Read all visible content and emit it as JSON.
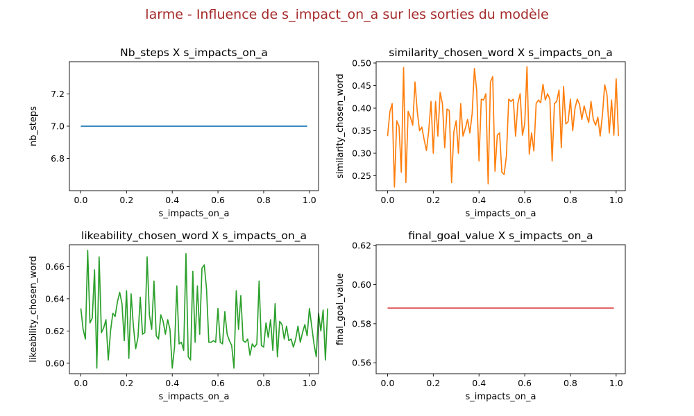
{
  "figure": {
    "suptitle": "larme - Influence de s_impact_on_a sur les sorties du modèle",
    "suptitle_color": "#a52a2a"
  },
  "chart_data": [
    {
      "type": "line",
      "title": "Nb_steps X s_impacts_on_a",
      "xlabel": "s_impacts_on_a",
      "ylabel": "nb_steps",
      "xlim": [
        -0.05,
        1.04
      ],
      "ylim": [
        6.6,
        7.4
      ],
      "xticks": [
        0.0,
        0.2,
        0.4,
        0.6,
        0.8,
        1.0
      ],
      "yticks": [
        6.8,
        7.0,
        7.2
      ],
      "xtick_labels": [
        "0.0",
        "0.2",
        "0.4",
        "0.6",
        "0.8",
        "1.0"
      ],
      "ytick_labels": [
        "6.8",
        "7.0",
        "7.2"
      ],
      "color": "#1f77b4",
      "series": [
        {
          "x": [
            0.0,
            0.99
          ],
          "values": [
            7.0,
            7.0
          ]
        }
      ]
    },
    {
      "type": "line",
      "title": "similarity_chosen_word X s_impacts_on_a",
      "xlabel": "s_impacts_on_a",
      "ylabel": "similarity_chosen_word",
      "xlim": [
        -0.05,
        1.04
      ],
      "ylim": [
        0.217,
        0.503
      ],
      "xticks": [
        0.0,
        0.2,
        0.4,
        0.6,
        0.8,
        1.0
      ],
      "yticks": [
        0.25,
        0.3,
        0.35,
        0.4,
        0.45,
        0.5
      ],
      "xtick_labels": [
        "0.0",
        "0.2",
        "0.4",
        "0.6",
        "0.8",
        "1.0"
      ],
      "ytick_labels": [
        "0.25",
        "0.30",
        "0.35",
        "0.40",
        "0.45",
        "0.50"
      ],
      "color": "#ff7f0e",
      "series": [
        {
          "x_start": 0.0,
          "x_step": 0.01,
          "values": [
            0.338,
            0.392,
            0.41,
            0.225,
            0.372,
            0.36,
            0.258,
            0.49,
            0.235,
            0.393,
            0.38,
            0.362,
            0.458,
            0.392,
            0.35,
            0.358,
            0.33,
            0.306,
            0.35,
            0.415,
            0.3,
            0.415,
            0.338,
            0.435,
            0.41,
            0.312,
            0.398,
            0.395,
            0.235,
            0.348,
            0.372,
            0.3,
            0.41,
            0.338,
            0.355,
            0.375,
            0.345,
            0.388,
            0.488,
            0.438,
            0.283,
            0.42,
            0.418,
            0.432,
            0.232,
            0.458,
            0.47,
            0.26,
            0.34,
            0.345,
            0.258,
            0.253,
            0.295,
            0.42,
            0.415,
            0.42,
            0.338,
            0.41,
            0.432,
            0.34,
            0.365,
            0.492,
            0.298,
            0.345,
            0.305,
            0.41,
            0.418,
            0.412,
            0.453,
            0.418,
            0.432,
            0.42,
            0.283,
            0.41,
            0.415,
            0.44,
            0.312,
            0.448,
            0.365,
            0.37,
            0.42,
            0.35,
            0.4,
            0.42,
            0.408,
            0.375,
            0.405,
            0.385,
            0.368,
            0.415,
            0.375,
            0.362,
            0.38,
            0.338,
            0.385,
            0.452,
            0.43,
            0.345,
            0.418,
            0.34,
            0.465,
            0.338
          ]
        }
      ]
    },
    {
      "type": "line",
      "title": "likeability_chosen_word X s_impacts_on_a",
      "xlabel": "s_impacts_on_a",
      "ylabel": "likeability_chosen_word",
      "xlim": [
        -0.05,
        1.04
      ],
      "ylim": [
        0.5935,
        0.6735
      ],
      "xticks": [
        0.0,
        0.2,
        0.4,
        0.6,
        0.8,
        1.0
      ],
      "yticks": [
        0.6,
        0.62,
        0.64,
        0.66
      ],
      "xtick_labels": [
        "0.0",
        "0.2",
        "0.4",
        "0.6",
        "0.8",
        "1.0"
      ],
      "ytick_labels": [
        "0.60",
        "0.62",
        "0.64",
        "0.66"
      ],
      "color": "#2ca02c",
      "series": [
        {
          "x_start": 0.0,
          "x_step": 0.01,
          "values": [
            0.634,
            0.621,
            0.615,
            0.67,
            0.625,
            0.628,
            0.658,
            0.597,
            0.666,
            0.619,
            0.622,
            0.627,
            0.602,
            0.62,
            0.631,
            0.629,
            0.638,
            0.644,
            0.637,
            0.614,
            0.645,
            0.603,
            0.643,
            0.623,
            0.609,
            0.616,
            0.641,
            0.618,
            0.619,
            0.666,
            0.63,
            0.621,
            0.651,
            0.617,
            0.615,
            0.63,
            0.626,
            0.618,
            0.627,
            0.621,
            0.597,
            0.61,
            0.648,
            0.612,
            0.613,
            0.608,
            0.668,
            0.604,
            0.602,
            0.657,
            0.613,
            0.648,
            0.618,
            0.659,
            0.661,
            0.646,
            0.613,
            0.613,
            0.614,
            0.613,
            0.634,
            0.613,
            0.612,
            0.632,
            0.618,
            0.614,
            0.611,
            0.597,
            0.645,
            0.621,
            0.642,
            0.614,
            0.613,
            0.615,
            0.605,
            0.612,
            0.61,
            0.612,
            0.651,
            0.611,
            0.61,
            0.625,
            0.616,
            0.627,
            0.608,
            0.637,
            0.604,
            0.626,
            0.624,
            0.615,
            0.623,
            0.614,
            0.615,
            0.61,
            0.615,
            0.623,
            0.613,
            0.619,
            0.624,
            0.617,
            0.634,
            0.623,
            0.612,
            0.604,
            0.631,
            0.62,
            0.633,
            0.602,
            0.634
          ]
        }
      ]
    },
    {
      "type": "line",
      "title": "final_goal_value X s_impacts_on_a",
      "xlabel": "s_impacts_on_a",
      "ylabel": "final_goal_value",
      "xlim": [
        -0.05,
        1.04
      ],
      "ylim": [
        0.5544,
        0.6204
      ],
      "xticks": [
        0.0,
        0.2,
        0.4,
        0.6,
        0.8,
        1.0
      ],
      "yticks": [
        0.56,
        0.58,
        0.6,
        0.62
      ],
      "xtick_labels": [
        "0.0",
        "0.2",
        "0.4",
        "0.6",
        "0.8",
        "1.0"
      ],
      "ytick_labels": [
        "0.56",
        "0.58",
        "0.60",
        "0.62"
      ],
      "color": "#d62728",
      "series": [
        {
          "x": [
            0.0,
            0.99
          ],
          "values": [
            0.588,
            0.588
          ]
        }
      ]
    }
  ]
}
